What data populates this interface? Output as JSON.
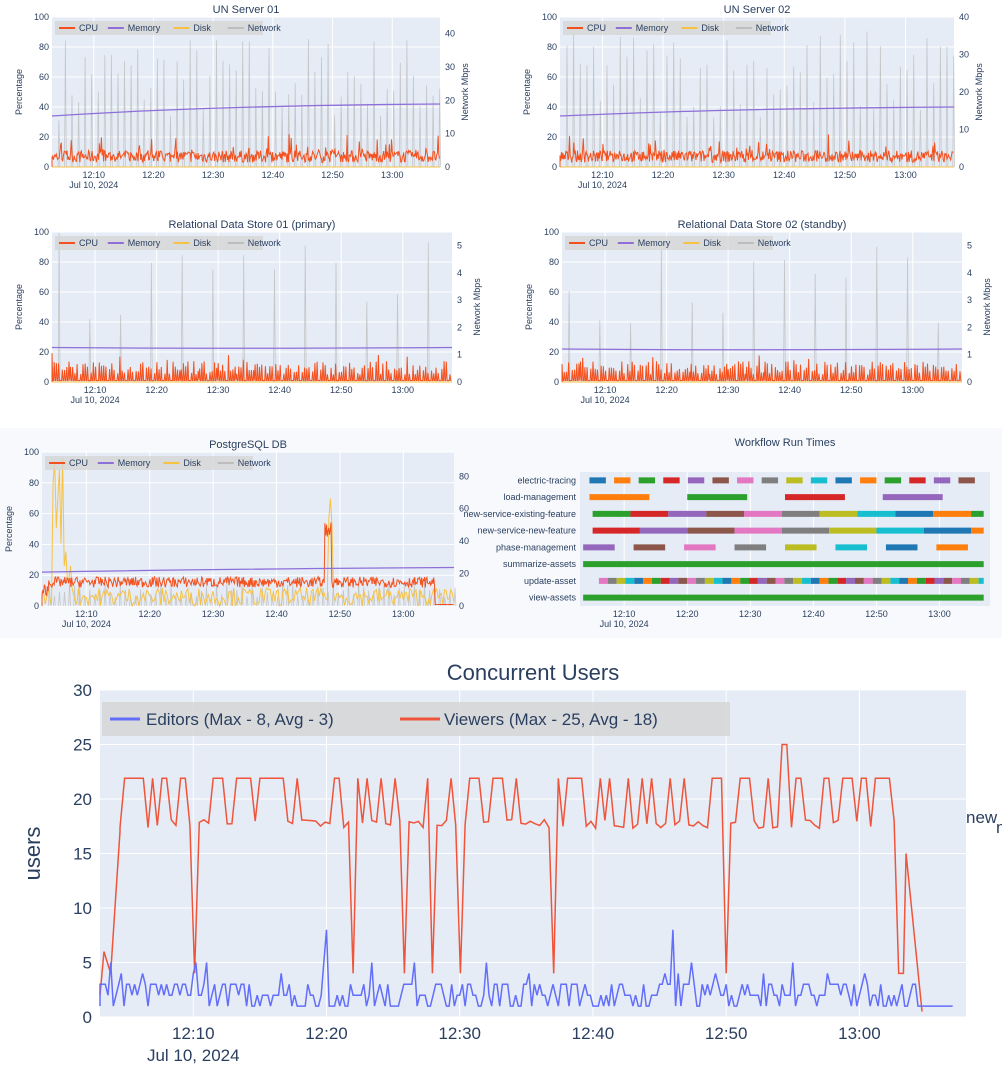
{
  "colors": {
    "cpu": "#f4511e",
    "memory": "#8e6fd8",
    "disk": "#f7c244",
    "network": "#bdbdbd",
    "plot_bg": "#e5ecf6",
    "grid": "#ffffff",
    "editors": "#636efa",
    "viewers": "#ef553b"
  },
  "legend_labels": {
    "cpu": "CPU",
    "memory": "Memory",
    "disk": "Disk",
    "network": "Network"
  },
  "time_ticks": [
    "12:10",
    "12:20",
    "12:30",
    "12:40",
    "12:50",
    "13:00"
  ],
  "date_label": "Jul 10, 2024",
  "percentage_label": "Percentage",
  "network_label": "Network Mbps",
  "chart_data": [
    {
      "id": "un01",
      "type": "line",
      "title": "UN Server 01",
      "ylabel": "Percentage",
      "y2label": "Network Mbps",
      "ylim": [
        0,
        100
      ],
      "y2lim": [
        0,
        45
      ],
      "yticks": [
        "0",
        "20",
        "40",
        "60",
        "80",
        "100"
      ],
      "y2ticks": [
        "0",
        "10",
        "20",
        "30",
        "40"
      ],
      "xrange": [
        "12:03",
        "13:08"
      ],
      "legend_position": "top-left",
      "series": [
        {
          "name": "CPU",
          "description": "spiky 3-15%, peaks near 22%"
        },
        {
          "name": "Memory",
          "values_start": 34,
          "values_end": 42
        },
        {
          "name": "Disk",
          "values_start": 0,
          "values_end": 0
        },
        {
          "name": "Network",
          "description": "spikes up to ~44 Mbps"
        }
      ]
    },
    {
      "id": "un02",
      "type": "line",
      "title": "UN Server 02",
      "ylabel": "Percentage",
      "y2label": "Network Mbps",
      "ylim": [
        0,
        100
      ],
      "y2lim": [
        0,
        40
      ],
      "yticks": [
        "0",
        "20",
        "40",
        "60",
        "80",
        "100"
      ],
      "y2ticks": [
        "0",
        "10",
        "20",
        "30",
        "40"
      ],
      "xrange": [
        "12:03",
        "13:08"
      ],
      "legend_position": "top-left",
      "series": [
        {
          "name": "CPU",
          "description": "spiky 3-15%, peaks near 22%"
        },
        {
          "name": "Memory",
          "values_start": 34,
          "values_end": 40
        },
        {
          "name": "Disk",
          "values_start": 0,
          "values_end": 0
        },
        {
          "name": "Network",
          "description": "spikes up to ~40 Mbps"
        }
      ]
    },
    {
      "id": "rds01",
      "type": "line",
      "title": "Relational Data Store 01 (primary)",
      "ylabel": "Percentage",
      "y2label": "Network Mbps",
      "ylim": [
        0,
        100
      ],
      "y2lim": [
        0,
        5.5
      ],
      "yticks": [
        "0",
        "20",
        "40",
        "60",
        "80",
        "100"
      ],
      "y2ticks": [
        "0",
        "1",
        "2",
        "3",
        "4",
        "5"
      ],
      "xrange": [
        "12:03",
        "13:08"
      ],
      "legend_position": "top-left",
      "series": [
        {
          "name": "CPU",
          "description": "periodic 5-15%, peaks ~20%"
        },
        {
          "name": "Memory",
          "values_start": 23,
          "values_end": 23
        },
        {
          "name": "Disk",
          "values_start": 0,
          "values_end": 0
        },
        {
          "name": "Network",
          "description": "spikes ~5.5 Mbps every ~5 min"
        }
      ]
    },
    {
      "id": "rds02",
      "type": "line",
      "title": "Relational Data Store 02 (standby)",
      "ylabel": "Percentage",
      "y2label": "Network Mbps",
      "ylim": [
        0,
        100
      ],
      "y2lim": [
        0,
        5.5
      ],
      "yticks": [
        "0",
        "20",
        "40",
        "60",
        "80",
        "100"
      ],
      "y2ticks": [
        "0",
        "1",
        "2",
        "3",
        "4",
        "5"
      ],
      "xrange": [
        "12:03",
        "13:08"
      ],
      "legend_position": "top-left",
      "series": [
        {
          "name": "CPU",
          "description": "periodic 3-10%"
        },
        {
          "name": "Memory",
          "values_start": 22,
          "values_end": 22
        },
        {
          "name": "Disk",
          "values_start": 0,
          "values_end": 0
        },
        {
          "name": "Network",
          "description": "spikes ~5.5 Mbps every ~5 min"
        }
      ]
    },
    {
      "id": "pg",
      "type": "line",
      "title": "PostgreSQL DB",
      "ylabel": "Percentage",
      "y2label": "Network Mbps",
      "ylim": [
        0,
        100
      ],
      "y2lim": [
        0,
        95
      ],
      "yticks": [
        "0",
        "20",
        "40",
        "60",
        "80",
        "100"
      ],
      "y2ticks": [
        "0",
        "20",
        "40",
        "60",
        "80"
      ],
      "xrange": [
        "12:03",
        "13:08"
      ],
      "legend_position": "top-left",
      "series": [
        {
          "name": "CPU",
          "description": "~15%, spikes to ~55% near 12:48"
        },
        {
          "name": "Memory",
          "values_start": 22,
          "values_end": 25
        },
        {
          "name": "Disk",
          "description": "bursts up to 100% near 12:05-12:07, ~70% at 12:50"
        },
        {
          "name": "Network",
          "description": "low, ~0-10 Mbps"
        }
      ]
    },
    {
      "id": "wf",
      "type": "gantt",
      "title": "Workflow Run Times",
      "xrange": [
        "12:03",
        "13:08"
      ],
      "categories": [
        "electric-tracing",
        "load-management",
        "new-service-existing-feature",
        "new-service-new-feature",
        "phase-management",
        "summarize-assets",
        "update-asset",
        "view-assets"
      ]
    },
    {
      "id": "cu",
      "type": "line",
      "title": "Concurrent Users",
      "ylabel": "users",
      "ylim": [
        0,
        30
      ],
      "yticks": [
        "0",
        "5",
        "10",
        "15",
        "20",
        "25",
        "30"
      ],
      "xrange": [
        "12:03",
        "13:08"
      ],
      "legend_position": "top-left",
      "series": [
        {
          "name": "Editors (Max - 8, Avg - 3)",
          "max": 8,
          "avg": 3
        },
        {
          "name": "Viewers (Max - 25, Avg - 18)",
          "max": 25,
          "avg": 18
        }
      ]
    }
  ],
  "stray_labels": [
    "new",
    "n"
  ]
}
